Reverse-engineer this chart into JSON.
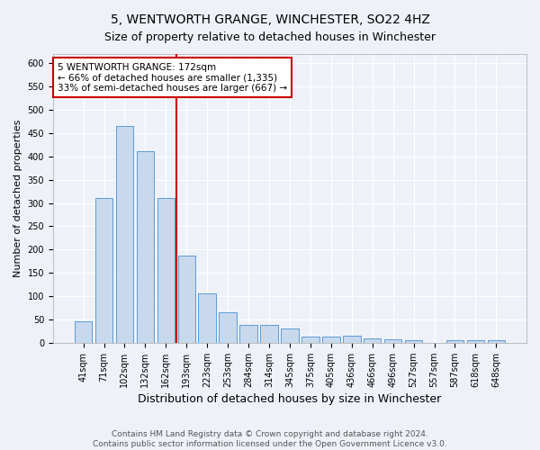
{
  "title": "5, WENTWORTH GRANGE, WINCHESTER, SO22 4HZ",
  "subtitle": "Size of property relative to detached houses in Winchester",
  "xlabel": "Distribution of detached houses by size in Winchester",
  "ylabel": "Number of detached properties",
  "categories": [
    "41sqm",
    "71sqm",
    "102sqm",
    "132sqm",
    "162sqm",
    "193sqm",
    "223sqm",
    "253sqm",
    "284sqm",
    "314sqm",
    "345sqm",
    "375sqm",
    "405sqm",
    "436sqm",
    "466sqm",
    "496sqm",
    "527sqm",
    "557sqm",
    "587sqm",
    "618sqm",
    "648sqm"
  ],
  "values": [
    46,
    311,
    465,
    412,
    311,
    188,
    106,
    65,
    38,
    38,
    30,
    14,
    14,
    15,
    9,
    8,
    5,
    0,
    5,
    5,
    5
  ],
  "bar_color": "#c8d8ed",
  "bar_edge_color": "#5b9bd5",
  "red_line_index": 4,
  "red_line_color": "#cc0000",
  "annotation_line1": "5 WENTWORTH GRANGE: 172sqm",
  "annotation_line2": "← 66% of detached houses are smaller (1,335)",
  "annotation_line3": "33% of semi-detached houses are larger (667) →",
  "annotation_box_color": "white",
  "annotation_box_edge": "#cc0000",
  "ylim": [
    0,
    620
  ],
  "yticks": [
    0,
    50,
    100,
    150,
    200,
    250,
    300,
    350,
    400,
    450,
    500,
    550,
    600
  ],
  "footnote1": "Contains HM Land Registry data © Crown copyright and database right 2024.",
  "footnote2": "Contains public sector information licensed under the Open Government Licence v3.0.",
  "background_color": "#eef2f8",
  "grid_color": "#ffffff",
  "title_fontsize": 10,
  "xlabel_fontsize": 9,
  "ylabel_fontsize": 8,
  "tick_fontsize": 7,
  "annotation_fontsize": 7.5,
  "footnote_fontsize": 6.5
}
